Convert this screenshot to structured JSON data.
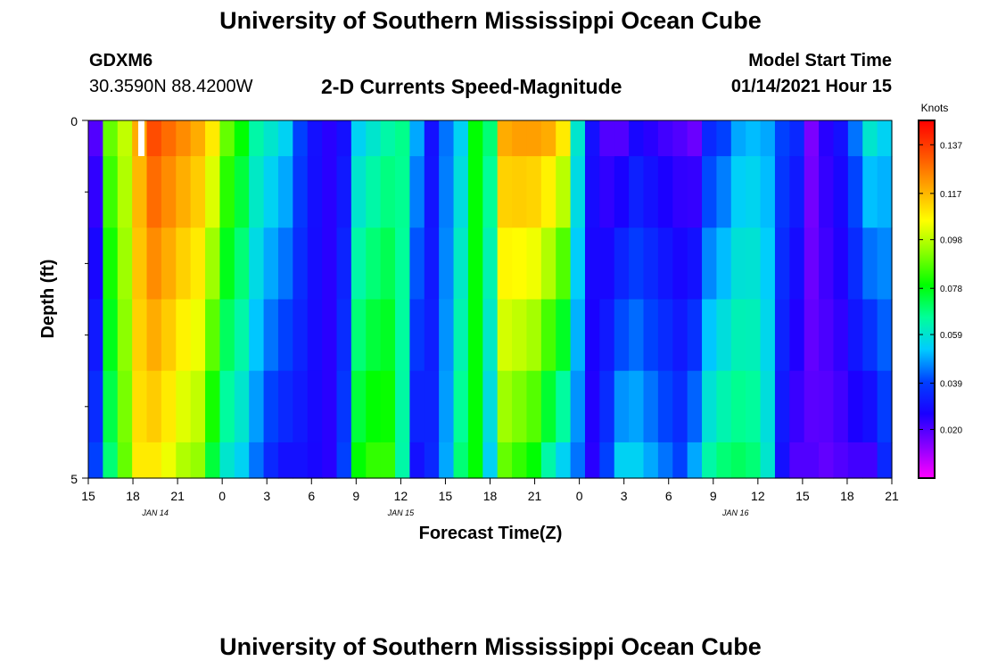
{
  "header": {
    "title": "University of Southern Mississippi Ocean Cube",
    "station_id": "GDXM6",
    "coordinates": "30.3590N 88.4200W",
    "plot_title": "2-D Currents Speed-Magnitude",
    "model_start_label": "Model Start Time",
    "model_start_value": "01/14/2021 Hour 15"
  },
  "footer": {
    "title": "University of Southern Mississippi Ocean Cube"
  },
  "chart_data": {
    "type": "heatmap",
    "title": "2-D Currents Speed-Magnitude",
    "xlabel": "Forecast Time(Z)",
    "ylabel": "Depth (ft)",
    "y_range": [
      0,
      5
    ],
    "y_tick_labels": [
      "0",
      "5"
    ],
    "x_start_hour": 15,
    "x_hours": 54,
    "x_tick_labels": [
      "15",
      "18",
      "21",
      "0",
      "3",
      "6",
      "9",
      "12",
      "15",
      "18",
      "21",
      "0",
      "3",
      "6",
      "9",
      "12",
      "15",
      "18",
      "21"
    ],
    "date_labels": [
      {
        "text": "JAN 14",
        "hour": 19.5
      },
      {
        "text": "JAN 15",
        "hour": 36
      },
      {
        "text": "JAN 16",
        "hour": 58.5
      }
    ],
    "colorbar": {
      "unit": "Knots",
      "min": 0.0,
      "max": 0.147,
      "tick_labels": [
        "0.137",
        "0.117",
        "0.098",
        "0.078",
        "0.059",
        "0.039",
        "0.020"
      ],
      "tick_values": [
        0.137,
        0.117,
        0.098,
        0.078,
        0.059,
        0.039,
        0.02
      ],
      "colors": [
        "#ff00ff",
        "#8800ff",
        "#1a00ff",
        "#0040ff",
        "#00ccff",
        "#00ff99",
        "#00ff00",
        "#88ff00",
        "#ffff00",
        "#ffaa00",
        "#ff5500",
        "#ff0000"
      ]
    },
    "layer_depths_ft": [
      "0-0.5",
      "0.5-1.5",
      "1.5-2.5",
      "2.5-3.5",
      "3.5-4.5",
      "4.5-5"
    ],
    "speed_profiles_knots": {
      "hours": [
        15,
        16,
        17,
        18,
        19,
        20,
        21,
        22,
        23,
        24,
        25,
        26,
        27,
        28,
        29,
        30,
        31,
        32,
        33,
        34,
        35,
        36,
        37,
        38,
        39,
        40,
        41,
        42,
        43,
        44,
        45,
        46,
        47,
        48,
        49,
        50,
        51,
        52,
        53,
        54,
        55,
        56,
        57,
        58,
        59,
        60,
        61,
        62,
        63,
        64,
        65,
        66,
        67,
        68,
        69
      ],
      "surface": [
        0.02,
        0.09,
        0.1,
        0.12,
        0.135,
        0.13,
        0.125,
        0.12,
        0.11,
        0.09,
        0.08,
        0.065,
        0.06,
        0.055,
        0.04,
        0.03,
        0.025,
        0.03,
        0.055,
        0.06,
        0.065,
        0.068,
        0.05,
        0.03,
        0.045,
        0.055,
        0.08,
        0.07,
        0.12,
        0.122,
        0.122,
        0.12,
        0.11,
        0.06,
        0.03,
        0.02,
        0.02,
        0.028,
        0.025,
        0.022,
        0.02,
        0.017,
        0.035,
        0.04,
        0.05,
        0.052,
        0.05,
        0.04,
        0.035,
        0.015,
        0.025,
        0.03,
        0.045,
        0.06,
        0.055
      ],
      "bottom": [
        0.04,
        0.07,
        0.09,
        0.11,
        0.11,
        0.105,
        0.098,
        0.095,
        0.075,
        0.06,
        0.055,
        0.045,
        0.035,
        0.03,
        0.03,
        0.028,
        0.025,
        0.04,
        0.08,
        0.085,
        0.085,
        0.065,
        0.03,
        0.035,
        0.05,
        0.07,
        0.08,
        0.055,
        0.09,
        0.085,
        0.08,
        0.065,
        0.055,
        0.045,
        0.025,
        0.04,
        0.055,
        0.055,
        0.05,
        0.045,
        0.04,
        0.05,
        0.065,
        0.07,
        0.072,
        0.07,
        0.06,
        0.03,
        0.02,
        0.02,
        0.018,
        0.02,
        0.022,
        0.022,
        0.035
      ]
    }
  }
}
